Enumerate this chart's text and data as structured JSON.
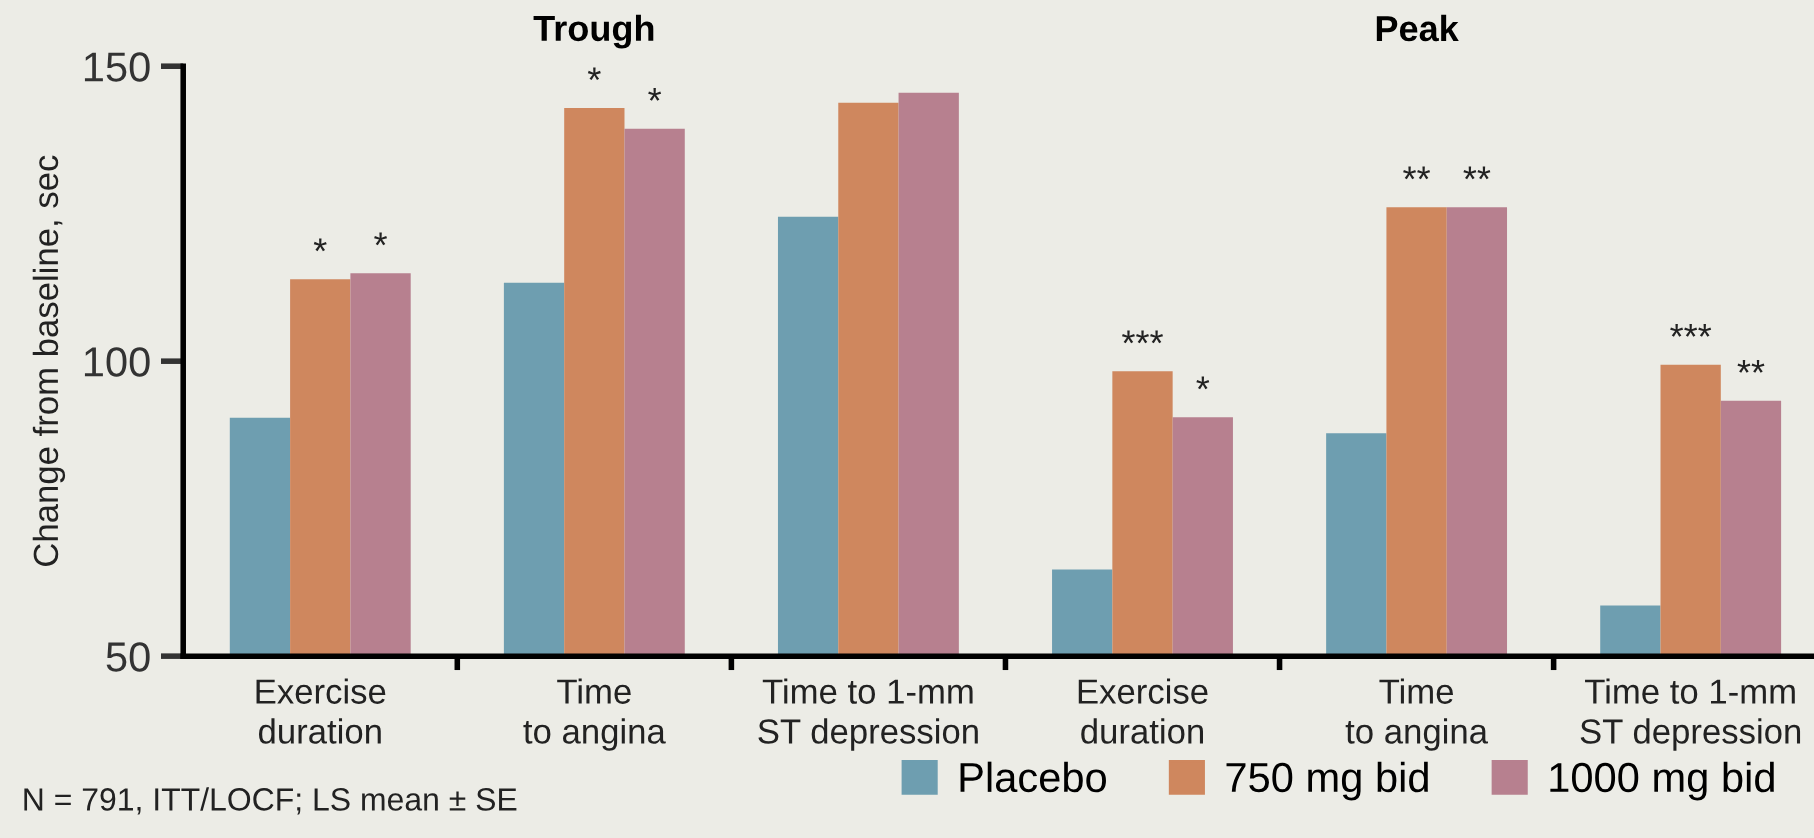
{
  "chart_data": {
    "type": "bar",
    "ylabel": "Change from baseline, sec",
    "categories": [
      "Exercise\nduration",
      "Time\nto angina",
      "Time to 1-mm\nST depression",
      "Exercise\nduration",
      "Time\nto angina",
      "Time to 1-mm\nST depression"
    ],
    "series": [
      {
        "name": "Placebo",
        "color": "#6e9eb0",
        "values": [
          90.4,
          113.3,
          124.5,
          64.7,
          87.8,
          58.6
        ],
        "value_labels": [
          null,
          null,
          null,
          null,
          null,
          null
        ]
      },
      {
        "name": "750 mg bid",
        "color": "#cf875e",
        "values": [
          113.9,
          142.9,
          143.8,
          98.3,
          126.1,
          99.4
        ],
        "value_labels": [
          "*",
          "*",
          null,
          "***",
          "**",
          "***"
        ]
      },
      {
        "name": "1000 mg bid",
        "color": "#b7808f",
        "values": [
          114.9,
          139.4,
          145.5,
          90.5,
          126.1,
          93.3
        ],
        "value_labels": [
          "*",
          "*",
          null,
          "*",
          "**",
          "**"
        ]
      }
    ],
    "ylim": [
      50,
      150
    ],
    "yticks": [
      50,
      100,
      150
    ],
    "annotations": [
      "Trough",
      "Peak",
      "N = 791, ITT/LOCF; LS mean ± SE"
    ],
    "grid": false,
    "legend": "bottom right"
  }
}
